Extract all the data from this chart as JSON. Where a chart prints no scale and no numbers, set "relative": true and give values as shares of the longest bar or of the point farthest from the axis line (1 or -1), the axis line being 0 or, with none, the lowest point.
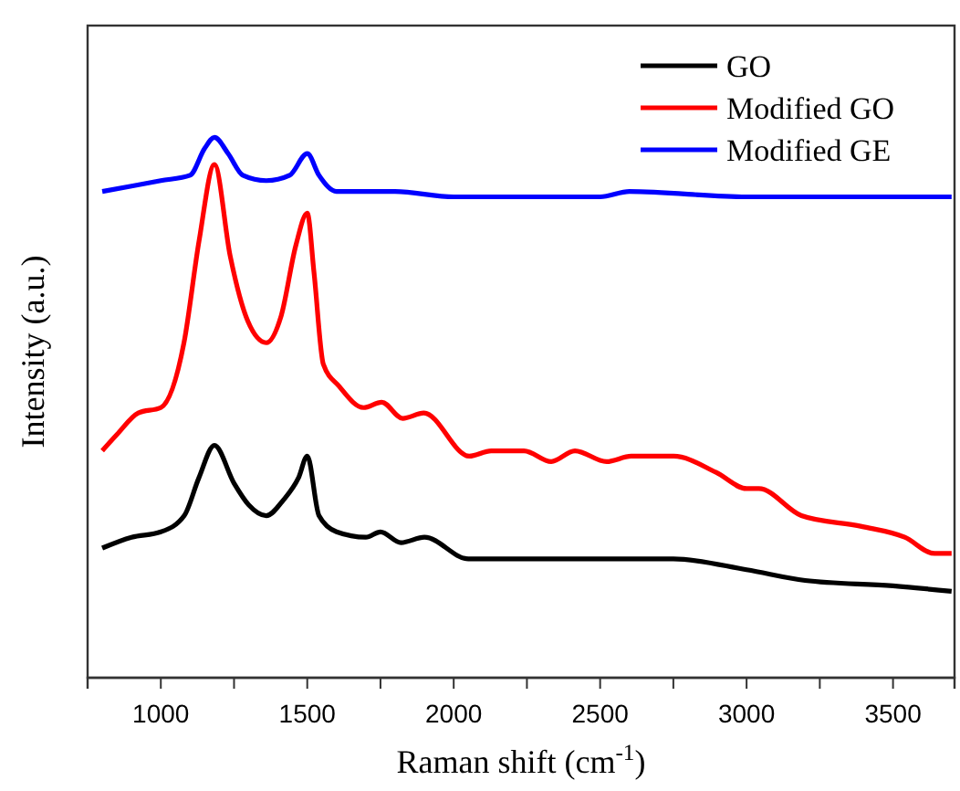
{
  "chart_data": {
    "type": "line",
    "xlabel": "Raman shift (cm$^{-1}$)",
    "ylabel": "Intensity (a.u.)",
    "relative": true,
    "xlim": [
      750,
      3710
    ],
    "xticks": [
      1000,
      {
        "value": 1250,
        "label": null
      },
      1500,
      {
        "value": 1750,
        "label": null
      },
      2000,
      {
        "value": 2250,
        "label": null
      },
      2500,
      {
        "value": 2750,
        "label": null
      },
      3000,
      {
        "value": 3250,
        "label": null
      },
      3500
    ],
    "legend": "top right",
    "line_style": "solid",
    "marker": "none",
    "series": [
      {
        "name": "GO",
        "color": "#000000",
        "x": [
          800,
          900,
          1000,
          1080,
          1130,
          1183,
          1250,
          1300,
          1360,
          1420,
          1470,
          1500,
          1540,
          1600,
          1700,
          1750,
          1820,
          1900,
          2050,
          2300,
          2350,
          2600,
          2750,
          3000,
          3200,
          3500,
          3700
        ],
        "values": [
          0.24,
          0.26,
          0.27,
          0.3,
          0.37,
          0.43,
          0.36,
          0.32,
          0.3,
          0.33,
          0.37,
          0.41,
          0.3,
          0.27,
          0.26,
          0.27,
          0.25,
          0.26,
          0.22,
          0.22,
          0.22,
          0.22,
          0.22,
          0.2,
          0.18,
          0.17,
          0.16
        ]
      },
      {
        "name": "Modified GO",
        "color": "#ff0000",
        "x": [
          800,
          850,
          923,
          1000,
          1079,
          1131,
          1183,
          1237,
          1297,
          1360,
          1411,
          1461,
          1500,
          1523,
          1555,
          1608,
          1692,
          1754,
          1826,
          1898,
          2053,
          2128,
          2240,
          2333,
          2414,
          2522,
          2606,
          2751,
          2896,
          3000,
          3042,
          3187,
          3393,
          3540,
          3642,
          3700
        ],
        "values": [
          0.42,
          0.45,
          0.49,
          0.5,
          0.62,
          0.81,
          0.95,
          0.78,
          0.66,
          0.62,
          0.67,
          0.8,
          0.86,
          0.75,
          0.58,
          0.54,
          0.5,
          0.51,
          0.48,
          0.49,
          0.41,
          0.42,
          0.42,
          0.4,
          0.42,
          0.4,
          0.41,
          0.41,
          0.38,
          0.35,
          0.35,
          0.3,
          0.28,
          0.26,
          0.23,
          0.23
        ]
      },
      {
        "name": "Modified GE",
        "color": "#0000ff",
        "x": [
          800,
          900,
          1000,
          1100,
          1150,
          1183,
          1230,
          1280,
          1360,
          1440,
          1500,
          1540,
          1600,
          1800,
          2000,
          2500,
          2600,
          3000,
          3300,
          3700
        ],
        "values": [
          0.9,
          0.91,
          0.92,
          0.93,
          0.98,
          1.0,
          0.97,
          0.93,
          0.92,
          0.93,
          0.97,
          0.93,
          0.9,
          0.9,
          0.89,
          0.89,
          0.9,
          0.89,
          0.89,
          0.89
        ]
      }
    ]
  }
}
